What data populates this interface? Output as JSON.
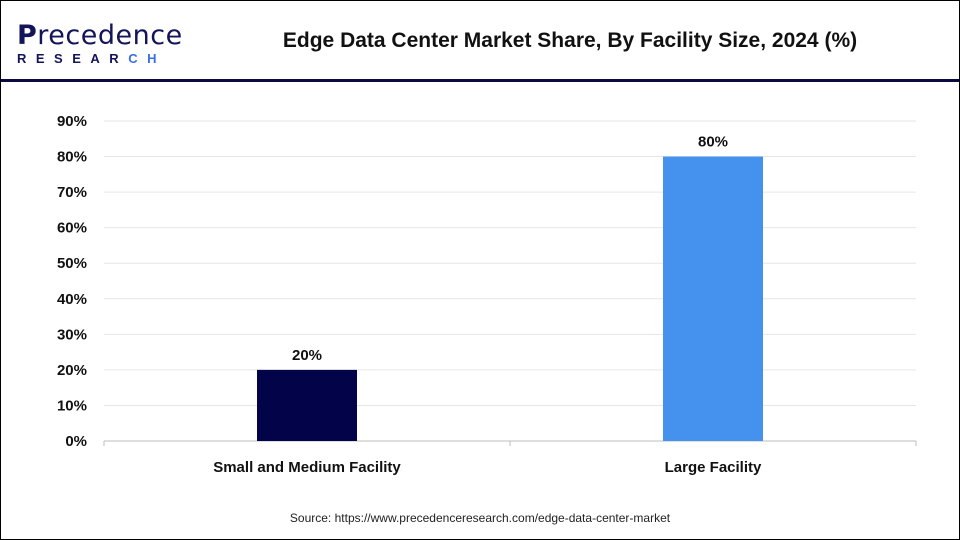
{
  "brand": {
    "logo_line1": "Precedence",
    "logo_line2": "RESEARCH"
  },
  "chart_data": {
    "type": "bar",
    "title": "Edge Data Center Market Share, By Facility Size, 2024 (%)",
    "categories": [
      "Small and Medium Facility",
      "Large Facility"
    ],
    "values": [
      20,
      80
    ],
    "data_labels": [
      "20%",
      "80%"
    ],
    "colors": [
      "#03034a",
      "#4592ee"
    ],
    "ylim": [
      0,
      90
    ],
    "yticks": [
      "0%",
      "10%",
      "20%",
      "30%",
      "40%",
      "50%",
      "60%",
      "70%",
      "80%",
      "90%"
    ],
    "grid": true,
    "xlabel": "",
    "ylabel": ""
  },
  "source": "Source: https://www.precedenceresearch.com/edge-data-center-market"
}
